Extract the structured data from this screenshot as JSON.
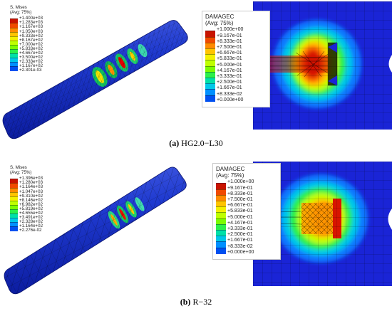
{
  "panels": [
    {
      "id": "a",
      "label": "(a)",
      "caption": "HG2.0−L30",
      "stress_legend": {
        "title_line1": "S, Mises",
        "title_line2": "(Avg: 75%)",
        "values": [
          "+1.400e+03",
          "+1.283e+03",
          "+1.167e+03",
          "+1.050e+03",
          "+9.333e+02",
          "+8.167e+02",
          "+7.000e+02",
          "+5.833e+02",
          "+4.667e+02",
          "+3.500e+02",
          "+2.333e+02",
          "+1.167e+02",
          "+2.301e-03"
        ]
      },
      "damage_legend": {
        "title_line1": "DAMAGEC",
        "title_line2": "(Avg: 75%)",
        "values": [
          "+1.000e+00",
          "+9.167e-01",
          "+8.333e-01",
          "+7.500e-01",
          "+6.667e-01",
          "+5.833e-01",
          "+5.000e-01",
          "+4.167e-01",
          "+3.333e-01",
          "+2.500e-01",
          "+1.667e-01",
          "+8.333e-02",
          "+0.000e+00"
        ]
      }
    },
    {
      "id": "b",
      "label": "(b)",
      "caption": "R−32",
      "stress_legend": {
        "title_line1": "S, Mises",
        "title_line2": "(Avg: 75%)",
        "values": [
          "+1.396e+03",
          "+1.280e+03",
          "+1.164e+03",
          "+1.047e+03",
          "+9.310e+02",
          "+8.146e+02",
          "+6.982e+02",
          "+5.819e+02",
          "+4.655e+02",
          "+3.491e+02",
          "+2.328e+02",
          "+1.164e+02",
          "+2.276e-02"
        ]
      },
      "damage_legend": {
        "title_line1": "DAMAGEC",
        "title_line2": "(Avg: 75%)",
        "values": [
          "+1.000e+00",
          "+9.167e-01",
          "+8.333e-01",
          "+7.500e-01",
          "+6.667e-01",
          "+5.833e-01",
          "+5.000e-01",
          "+4.167e-01",
          "+3.333e-01",
          "+2.500e-01",
          "+1.667e-01",
          "+8.333e-02",
          "+0.000e+00"
        ]
      }
    }
  ],
  "contour_colors": [
    "#c81400",
    "#f04a00",
    "#ff8a00",
    "#ffc400",
    "#f3f000",
    "#bfff00",
    "#7cfb00",
    "#2cf04a",
    "#00e0a8",
    "#00c8e8",
    "#0090ff",
    "#0050f0",
    "#0000c8"
  ]
}
